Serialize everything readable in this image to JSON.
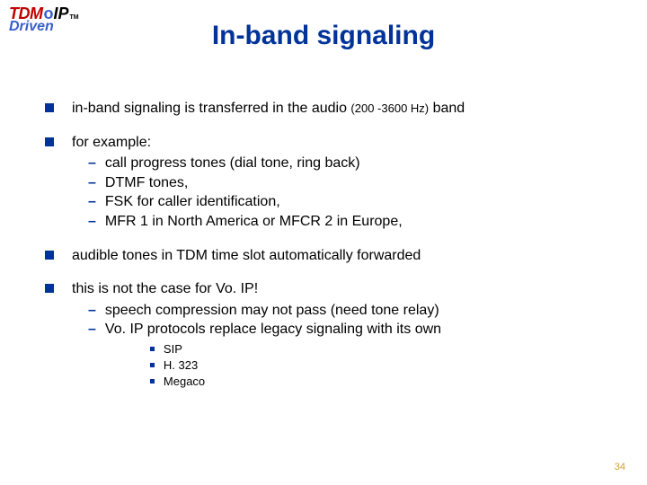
{
  "logo": {
    "tdm": "TDM",
    "o": "o",
    "ip": "IP",
    "tm": "TM",
    "driven": "Driven"
  },
  "title": "In-band signaling",
  "bullets": [
    {
      "text_pre": "in-band signaling is transferred in the audio ",
      "freq": "(200 -3600 Hz)",
      "text_post": " band"
    },
    {
      "text": "for example:",
      "subs": [
        {
          "text": "call progress tones (dial tone, ring back)"
        },
        {
          "text": "DTMF tones,"
        },
        {
          "text": "FSK for caller identification,"
        },
        {
          "text": "MFR 1 in North America or MFCR 2 in Europe,"
        }
      ]
    },
    {
      "text": "audible tones in TDM time slot automatically forwarded"
    },
    {
      "text": "this is not the case for Vo. IP!",
      "subs": [
        {
          "text": "speech compression may not pass (need tone relay)"
        },
        {
          "text": "Vo. IP protocols replace legacy signaling with its own",
          "subsubs": [
            {
              "text": "SIP"
            },
            {
              "text": "H. 323"
            },
            {
              "text": "Megaco"
            }
          ]
        }
      ]
    }
  ],
  "page_number": "34",
  "colors": {
    "title": "#003399",
    "bullet_square": "#003399",
    "sub_dash": "#003399",
    "subsub_bullet": "#003399",
    "page_num": "#d4a030",
    "logo_red": "#c00000",
    "logo_blue": "#3a5fcd"
  }
}
